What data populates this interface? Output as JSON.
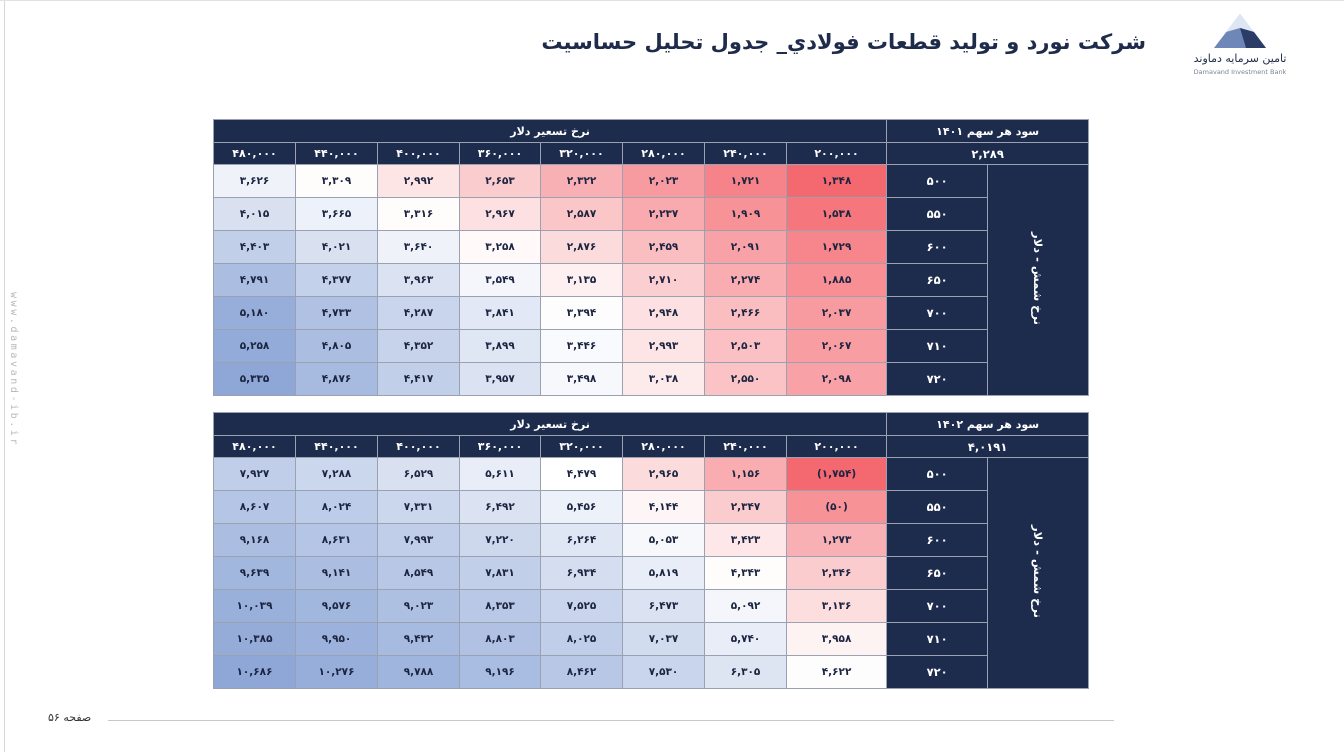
{
  "header": {
    "title": "شرکت نورد و تولید قطعات فولادي_ جدول تحليل حساسيت",
    "logo_name": "تامین سرمایه دماوند",
    "logo_sub": "Damavand Investment Bank"
  },
  "side_watermark": "www.damavand-ib.ir",
  "footer": {
    "page_label": "صفحه ۵۶"
  },
  "colors": {
    "header_navy": "#1d2b4d",
    "low": "#f4686f",
    "high": "#8ea7d7"
  },
  "tables": [
    {
      "title": "سود هر سهم ۱۴۰۱",
      "column_header": "نرخ تسعیر دلار",
      "base_value": "۲,۲۸۹",
      "row_header": "نرخ شمش - دلار",
      "columns": [
        "۲۰۰,۰۰۰",
        "۲۴۰,۰۰۰",
        "۲۸۰,۰۰۰",
        "۳۲۰,۰۰۰",
        "۳۶۰,۰۰۰",
        "۴۰۰,۰۰۰",
        "۴۴۰,۰۰۰",
        "۴۸۰,۰۰۰"
      ],
      "rows": [
        {
          "label": "۵۰۰",
          "cells": [
            "۱,۳۴۸",
            "۱,۷۲۱",
            "۲,۰۲۳",
            "۲,۳۲۲",
            "۲,۶۵۳",
            "۲,۹۹۲",
            "۳,۳۰۹",
            "۳,۶۲۶"
          ]
        },
        {
          "label": "۵۵۰",
          "cells": [
            "۱,۵۳۸",
            "۱,۹۰۹",
            "۲,۲۳۷",
            "۲,۵۸۷",
            "۲,۹۶۷",
            "۳,۳۱۶",
            "۳,۶۶۵",
            "۴,۰۱۵"
          ]
        },
        {
          "label": "۶۰۰",
          "cells": [
            "۱,۷۲۹",
            "۲,۰۹۱",
            "۲,۴۵۹",
            "۲,۸۷۶",
            "۳,۲۵۸",
            "۳,۶۴۰",
            "۴,۰۲۱",
            "۴,۴۰۳"
          ]
        },
        {
          "label": "۶۵۰",
          "cells": [
            "۱,۸۸۵",
            "۲,۲۷۴",
            "۲,۷۱۰",
            "۳,۱۳۵",
            "۳,۵۴۹",
            "۳,۹۶۳",
            "۴,۳۷۷",
            "۴,۷۹۱"
          ]
        },
        {
          "label": "۷۰۰",
          "cells": [
            "۲,۰۳۷",
            "۲,۴۶۶",
            "۲,۹۴۸",
            "۳,۳۹۴",
            "۳,۸۴۱",
            "۴,۲۸۷",
            "۴,۷۳۳",
            "۵,۱۸۰"
          ]
        },
        {
          "label": "۷۱۰",
          "cells": [
            "۲,۰۶۷",
            "۲,۵۰۳",
            "۲,۹۹۳",
            "۳,۴۴۶",
            "۳,۸۹۹",
            "۴,۳۵۲",
            "۴,۸۰۵",
            "۵,۲۵۸"
          ]
        },
        {
          "label": "۷۲۰",
          "cells": [
            "۲,۰۹۸",
            "۲,۵۵۰",
            "۳,۰۳۸",
            "۳,۴۹۸",
            "۳,۹۵۷",
            "۴,۴۱۷",
            "۴,۸۷۶",
            "۵,۳۳۵"
          ]
        }
      ],
      "shade": [
        [
          0.0,
          0.09,
          0.17,
          0.24,
          0.33,
          0.41,
          0.49,
          0.57
        ],
        [
          0.05,
          0.14,
          0.22,
          0.31,
          0.4,
          0.49,
          0.58,
          0.67
        ],
        [
          0.1,
          0.19,
          0.28,
          0.38,
          0.48,
          0.57,
          0.67,
          0.77
        ],
        [
          0.13,
          0.23,
          0.34,
          0.45,
          0.55,
          0.66,
          0.76,
          0.87
        ],
        [
          0.17,
          0.28,
          0.4,
          0.51,
          0.63,
          0.74,
          0.85,
          0.96
        ],
        [
          0.18,
          0.29,
          0.41,
          0.53,
          0.64,
          0.75,
          0.87,
          0.98
        ],
        [
          0.19,
          0.3,
          0.43,
          0.54,
          0.66,
          0.77,
          0.89,
          1.0
        ]
      ]
    },
    {
      "title": "سود هر سهم ۱۴۰۲",
      "column_header": "نرخ تسعیر دلار",
      "base_value": "۴,۰۱۹۱",
      "row_header": "نرخ شمش - دلار",
      "columns": [
        "۲۰۰,۰۰۰",
        "۲۴۰,۰۰۰",
        "۲۸۰,۰۰۰",
        "۳۲۰,۰۰۰",
        "۳۶۰,۰۰۰",
        "۴۰۰,۰۰۰",
        "۴۴۰,۰۰۰",
        "۴۸۰,۰۰۰"
      ],
      "rows": [
        {
          "label": "۵۰۰",
          "cells": [
            "(۱,۷۵۴)",
            "۱,۱۵۶",
            "۲,۹۶۵",
            "۴,۴۷۹",
            "۵,۶۱۱",
            "۶,۵۲۹",
            "۷,۲۸۸",
            "۷,۹۲۷"
          ]
        },
        {
          "label": "۵۵۰",
          "cells": [
            "(۵۰)",
            "۲,۳۴۷",
            "۴,۱۴۴",
            "۵,۴۵۶",
            "۶,۴۹۲",
            "۷,۳۳۱",
            "۸,۰۲۴",
            "۸,۶۰۷"
          ]
        },
        {
          "label": "۶۰۰",
          "cells": [
            "۱,۲۷۳",
            "۳,۴۲۳",
            "۵,۰۵۳",
            "۶,۲۶۴",
            "۷,۲۲۰",
            "۷,۹۹۳",
            "۸,۶۳۱",
            "۹,۱۶۸"
          ]
        },
        {
          "label": "۶۵۰",
          "cells": [
            "۲,۳۴۶",
            "۴,۳۴۳",
            "۵,۸۱۹",
            "۶,۹۳۴",
            "۷,۸۳۱",
            "۸,۵۴۹",
            "۹,۱۴۱",
            "۹,۶۳۹"
          ]
        },
        {
          "label": "۷۰۰",
          "cells": [
            "۳,۱۳۶",
            "۵,۰۹۲",
            "۶,۴۷۳",
            "۷,۵۲۵",
            "۸,۳۵۳",
            "۹,۰۲۳",
            "۹,۵۷۶",
            "۱۰,۰۳۹"
          ]
        },
        {
          "label": "۷۱۰",
          "cells": [
            "۳,۹۵۸",
            "۵,۷۴۰",
            "۷,۰۳۷",
            "۸,۰۲۵",
            "۸,۸۰۳",
            "۹,۴۳۲",
            "۹,۹۵۰",
            "۱۰,۳۸۵"
          ]
        },
        {
          "label": "۷۲۰",
          "cells": [
            "۴,۶۲۲",
            "۶,۳۰۵",
            "۷,۵۳۰",
            "۸,۴۶۲",
            "۹,۱۹۶",
            "۹,۷۸۸",
            "۱۰,۲۷۶",
            "۱۰,۶۸۶"
          ]
        }
      ],
      "shade": [
        [
          0.0,
          0.23,
          0.38,
          0.5,
          0.6,
          0.67,
          0.73,
          0.78
        ],
        [
          0.14,
          0.33,
          0.47,
          0.58,
          0.66,
          0.73,
          0.79,
          0.83
        ],
        [
          0.24,
          0.42,
          0.54,
          0.64,
          0.72,
          0.78,
          0.83,
          0.87
        ],
        [
          0.33,
          0.49,
          0.6,
          0.69,
          0.77,
          0.82,
          0.87,
          0.91
        ],
        [
          0.39,
          0.55,
          0.66,
          0.74,
          0.81,
          0.86,
          0.91,
          0.95
        ],
        [
          0.46,
          0.6,
          0.7,
          0.78,
          0.85,
          0.89,
          0.94,
          0.97
        ],
        [
          0.51,
          0.65,
          0.74,
          0.82,
          0.88,
          0.92,
          0.96,
          1.0
        ]
      ]
    }
  ]
}
